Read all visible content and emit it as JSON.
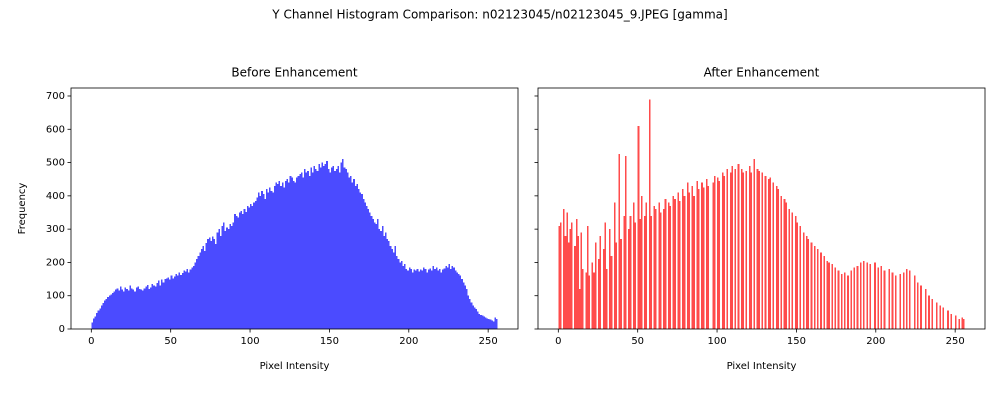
{
  "title": "Y Channel Histogram Comparison: n02123045/n02123045_9.JPEG [gamma]",
  "chart_data": [
    {
      "type": "histogram",
      "title": "Before Enhancement",
      "xlabel": "Pixel Intensity",
      "ylabel": "Frequency",
      "color": "#4b4bff",
      "bins": [
        0,
        1,
        2,
        3,
        4,
        5,
        6,
        7,
        8,
        9,
        10,
        11,
        12,
        13,
        14,
        15,
        16,
        17,
        18,
        19,
        20,
        21,
        22,
        23,
        24,
        25,
        26,
        27,
        28,
        29,
        30,
        31,
        32,
        33,
        34,
        35,
        36,
        37,
        38,
        39,
        40,
        41,
        42,
        43,
        44,
        45,
        46,
        47,
        48,
        49,
        50,
        51,
        52,
        53,
        54,
        55,
        56,
        57,
        58,
        59,
        60,
        61,
        62,
        63,
        64,
        65,
        66,
        67,
        68,
        69,
        70,
        71,
        72,
        73,
        74,
        75,
        76,
        77,
        78,
        79,
        80,
        81,
        82,
        83,
        84,
        85,
        86,
        87,
        88,
        89,
        90,
        91,
        92,
        93,
        94,
        95,
        96,
        97,
        98,
        99,
        100,
        101,
        102,
        103,
        104,
        105,
        106,
        107,
        108,
        109,
        110,
        111,
        112,
        113,
        114,
        115,
        116,
        117,
        118,
        119,
        120,
        121,
        122,
        123,
        124,
        125,
        126,
        127,
        128,
        129,
        130,
        131,
        132,
        133,
        134,
        135,
        136,
        137,
        138,
        139,
        140,
        141,
        142,
        143,
        144,
        145,
        146,
        147,
        148,
        149,
        150,
        151,
        152,
        153,
        154,
        155,
        156,
        157,
        158,
        159,
        160,
        161,
        162,
        163,
        164,
        165,
        166,
        167,
        168,
        169,
        170,
        171,
        172,
        173,
        174,
        175,
        176,
        177,
        178,
        179,
        180,
        181,
        182,
        183,
        184,
        185,
        186,
        187,
        188,
        189,
        190,
        191,
        192,
        193,
        194,
        195,
        196,
        197,
        198,
        199,
        200,
        201,
        202,
        203,
        204,
        205,
        206,
        207,
        208,
        209,
        210,
        211,
        212,
        213,
        214,
        215,
        216,
        217,
        218,
        219,
        220,
        221,
        222,
        223,
        224,
        225,
        226,
        227,
        228,
        229,
        230,
        231,
        232,
        233,
        234,
        235,
        236,
        237,
        238,
        239,
        240,
        241,
        242,
        243,
        244,
        245,
        246,
        247,
        248,
        249,
        250,
        251,
        252,
        253,
        254,
        255,
        256
      ],
      "counts": [
        20,
        32,
        38,
        48,
        55,
        62,
        70,
        78,
        85,
        90,
        96,
        100,
        104,
        108,
        112,
        118,
        122,
        115,
        128,
        118,
        112,
        125,
        120,
        115,
        130,
        122,
        118,
        112,
        125,
        128,
        120,
        118,
        115,
        122,
        128,
        132,
        120,
        125,
        135,
        130,
        128,
        138,
        145,
        130,
        148,
        140,
        150,
        152,
        155,
        148,
        160,
        152,
        158,
        165,
        160,
        170,
        162,
        168,
        175,
        172,
        180,
        170,
        178,
        185,
        190,
        200,
        210,
        220,
        230,
        240,
        250,
        235,
        258,
        270,
        275,
        265,
        278,
        270,
        255,
        290,
        300,
        280,
        310,
        320,
        295,
        305,
        300,
        315,
        310,
        320,
        345,
        340,
        335,
        350,
        355,
        345,
        360,
        352,
        370,
        365,
        375,
        370,
        380,
        385,
        395,
        410,
        400,
        415,
        405,
        390,
        420,
        410,
        425,
        415,
        410,
        430,
        440,
        435,
        445,
        430,
        440,
        425,
        445,
        450,
        440,
        460,
        455,
        445,
        440,
        455,
        460,
        465,
        470,
        455,
        480,
        470,
        475,
        460,
        485,
        470,
        490,
        480,
        475,
        495,
        485,
        500,
        490,
        495,
        505,
        480,
        470,
        485,
        490,
        475,
        480,
        490,
        470,
        500,
        510,
        485,
        480,
        470,
        455,
        460,
        440,
        450,
        430,
        435,
        420,
        410,
        405,
        390,
        380,
        370,
        360,
        350,
        340,
        330,
        320,
        315,
        330,
        300,
        295,
        310,
        280,
        290,
        270,
        265,
        250,
        240,
        230,
        250,
        220,
        210,
        200,
        205,
        190,
        195,
        180,
        175,
        185,
        180,
        170,
        178,
        175,
        180,
        172,
        178,
        175,
        185,
        180,
        170,
        178,
        182,
        175,
        190,
        180,
        185,
        175,
        180,
        170,
        178,
        182,
        190,
        185,
        195,
        180,
        190,
        185,
        175,
        170,
        165,
        160,
        150,
        140,
        130,
        120,
        100,
        90,
        80,
        70,
        65,
        60,
        52,
        45,
        42,
        40,
        38,
        35,
        32,
        30,
        28,
        25,
        22,
        35,
        30
      ],
      "xlim": [
        -12.8,
        268.8
      ],
      "ylim": [
        0,
        724
      ],
      "xticks": [
        0,
        50,
        100,
        150,
        200,
        250
      ],
      "yticks": [
        0,
        100,
        200,
        300,
        400,
        500,
        600,
        700
      ]
    },
    {
      "type": "histogram",
      "title": "After Enhancement",
      "xlabel": "Pixel Intensity",
      "color": "#ff4b4b",
      "show_ytick_labels": false,
      "bins": [
        0,
        1,
        2,
        3,
        4,
        5,
        6,
        7,
        8,
        9,
        10,
        11,
        12,
        13,
        14,
        15,
        16,
        17,
        18,
        19,
        20,
        21,
        22,
        23,
        24,
        25,
        26,
        27,
        28,
        29,
        30,
        31,
        32,
        33,
        34,
        35,
        36,
        37,
        38,
        39,
        40,
        41,
        42,
        43,
        44,
        45,
        46,
        47,
        48,
        49,
        50,
        51,
        52,
        53,
        54,
        55,
        56,
        57,
        58,
        59,
        60,
        61,
        62,
        63,
        64,
        65,
        66,
        67,
        68,
        69,
        70,
        71,
        72,
        73,
        74,
        75,
        76,
        77,
        78,
        79,
        80,
        81,
        82,
        83,
        84,
        85,
        86,
        87,
        88,
        89,
        90,
        91,
        92,
        93,
        94,
        95,
        96,
        97,
        98,
        99,
        100,
        101,
        102,
        103,
        104,
        105,
        106,
        107,
        108,
        109,
        110,
        111,
        112,
        113,
        114,
        115,
        116,
        117,
        118,
        119,
        120,
        121,
        122,
        123,
        124,
        125,
        126,
        127,
        128,
        129,
        130,
        131,
        132,
        133,
        134,
        135,
        136,
        137,
        138,
        139,
        140,
        141,
        142,
        143,
        144,
        145,
        146,
        147,
        148,
        149,
        150,
        151,
        152,
        153,
        154,
        155,
        156,
        157,
        158,
        159,
        160,
        161,
        162,
        163,
        164,
        165,
        166,
        167,
        168,
        169,
        170,
        171,
        172,
        173,
        174,
        175,
        176,
        177,
        178,
        179,
        180,
        181,
        182,
        183,
        184,
        185,
        186,
        187,
        188,
        189,
        190,
        191,
        192,
        193,
        194,
        195,
        196,
        197,
        198,
        199,
        200,
        201,
        202,
        203,
        204,
        205,
        206,
        207,
        208,
        209,
        210,
        211,
        212,
        213,
        214,
        215,
        216,
        217,
        218,
        219,
        220,
        221,
        222,
        223,
        224,
        225,
        226,
        227,
        228,
        229,
        230,
        231,
        232,
        233,
        234,
        235,
        236,
        237,
        238,
        239,
        240,
        241,
        242,
        243,
        244,
        245,
        246,
        247,
        248,
        249,
        250,
        251,
        252,
        253,
        254,
        255,
        256
      ],
      "counts": [
        310,
        320,
        0,
        360,
        280,
        350,
        260,
        300,
        320,
        0,
        250,
        330,
        280,
        120,
        290,
        180,
        0,
        170,
        310,
        160,
        0,
        200,
        170,
        260,
        0,
        210,
        280,
        0,
        240,
        320,
        180,
        0,
        300,
        220,
        0,
        380,
        260,
        0,
        525,
        270,
        0,
        340,
        520,
        0,
        300,
        340,
        0,
        380,
        320,
        0,
        610,
        330,
        400,
        0,
        340,
        380,
        0,
        690,
        340,
        0,
        370,
        360,
        0,
        380,
        350,
        0,
        360,
        390,
        0,
        380,
        370,
        0,
        400,
        390,
        0,
        410,
        385,
        0,
        420,
        400,
        0,
        440,
        410,
        0,
        430,
        400,
        0,
        445,
        420,
        0,
        440,
        425,
        0,
        450,
        430,
        0,
        0,
        440,
        460,
        0,
        455,
        445,
        0,
        470,
        460,
        0,
        480,
        0,
        470,
        490,
        0,
        480,
        0,
        495,
        0,
        480,
        470,
        0,
        475,
        0,
        490,
        470,
        0,
        510,
        0,
        480,
        475,
        0,
        470,
        0,
        460,
        0,
        450,
        455,
        0,
        440,
        0,
        430,
        420,
        0,
        400,
        0,
        390,
        380,
        0,
        360,
        0,
        350,
        0,
        340,
        320,
        0,
        310,
        0,
        290,
        0,
        280,
        270,
        0,
        260,
        0,
        250,
        0,
        240,
        0,
        230,
        0,
        220,
        0,
        205,
        200,
        0,
        195,
        0,
        185,
        0,
        175,
        0,
        165,
        0,
        170,
        0,
        160,
        0,
        175,
        0,
        185,
        0,
        190,
        0,
        200,
        0,
        205,
        0,
        200,
        0,
        195,
        0,
        0,
        200,
        0,
        185,
        0,
        190,
        0,
        175,
        0,
        0,
        180,
        0,
        170,
        0,
        160,
        0,
        0,
        165,
        0,
        170,
        0,
        180,
        0,
        175,
        0,
        0,
        160,
        0,
        140,
        0,
        130,
        0,
        0,
        120,
        0,
        100,
        0,
        90,
        0,
        0,
        80,
        0,
        70,
        0,
        65,
        0,
        0,
        55,
        0,
        45,
        0,
        0,
        40,
        0,
        30,
        0,
        35,
        30
      ],
      "xlim": [
        -12.8,
        268.8
      ],
      "ylim": [
        0,
        724
      ],
      "xticks": [
        0,
        50,
        100,
        150,
        200,
        250
      ],
      "yticks": [
        0,
        100,
        200,
        300,
        400,
        500,
        600,
        700
      ]
    }
  ]
}
